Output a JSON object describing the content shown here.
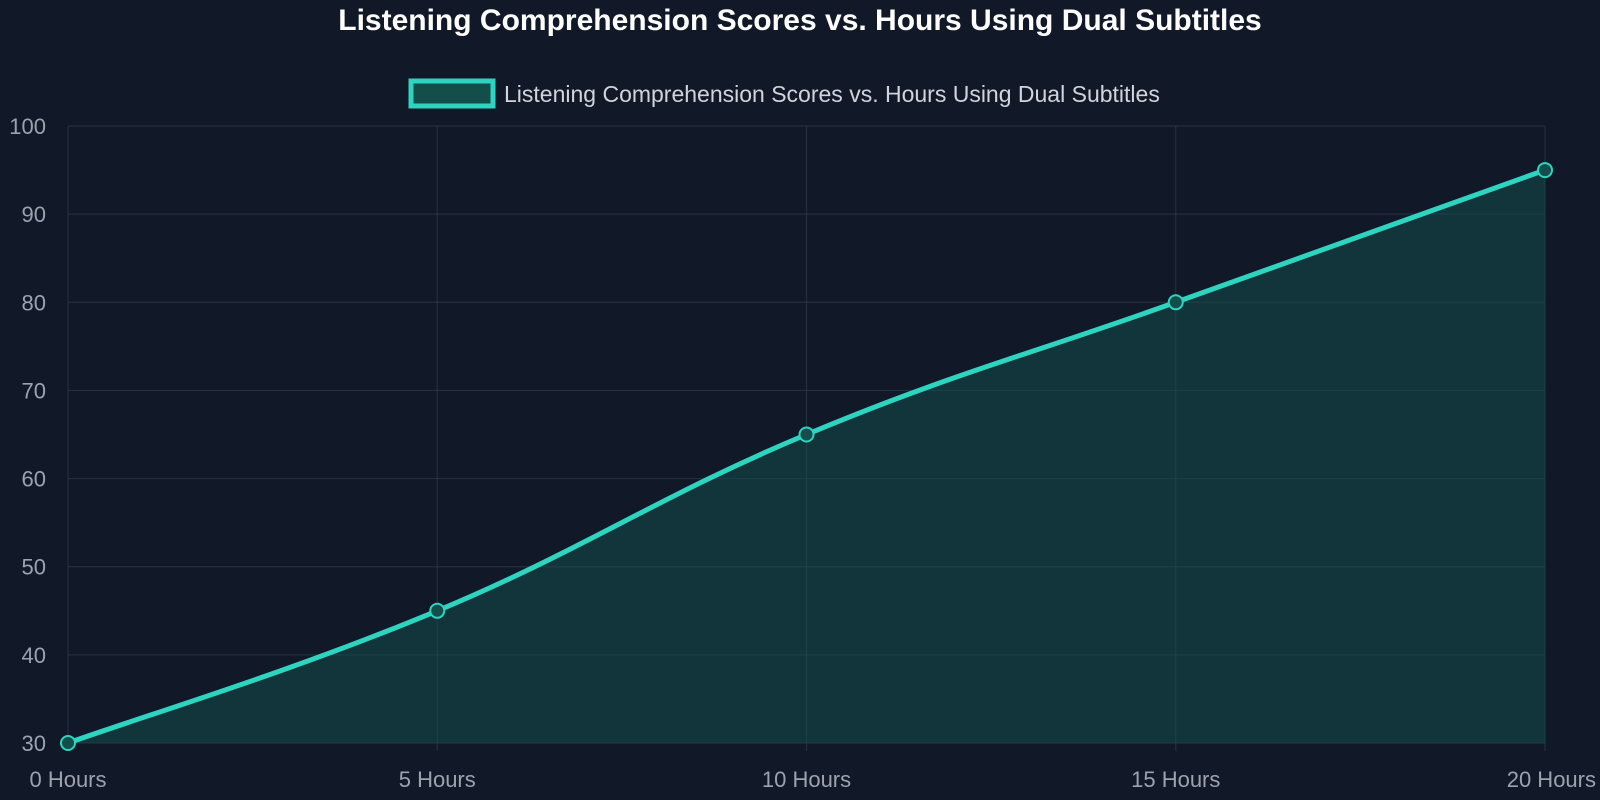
{
  "chart_data": {
    "type": "line",
    "title": "Listening Comprehension Scores vs. Hours Using Dual Subtitles",
    "categories": [
      "0 Hours",
      "5 Hours",
      "10 Hours",
      "15 Hours",
      "20 Hours"
    ],
    "series": [
      {
        "name": "Listening Comprehension Scores vs. Hours Using Dual Subtitles",
        "values": [
          30,
          45,
          65,
          80,
          95
        ]
      }
    ],
    "xlabel": "",
    "ylabel": "",
    "ylim": [
      30,
      100
    ],
    "yticks": [
      "30",
      "40",
      "50",
      "60",
      "70",
      "80",
      "90",
      "100"
    ],
    "grid": true,
    "legend_position": "top",
    "fill": true,
    "colors": {
      "background": "#111827",
      "line": "#2dd4bf",
      "fill": "#134e4a",
      "grid": "#374151"
    }
  }
}
